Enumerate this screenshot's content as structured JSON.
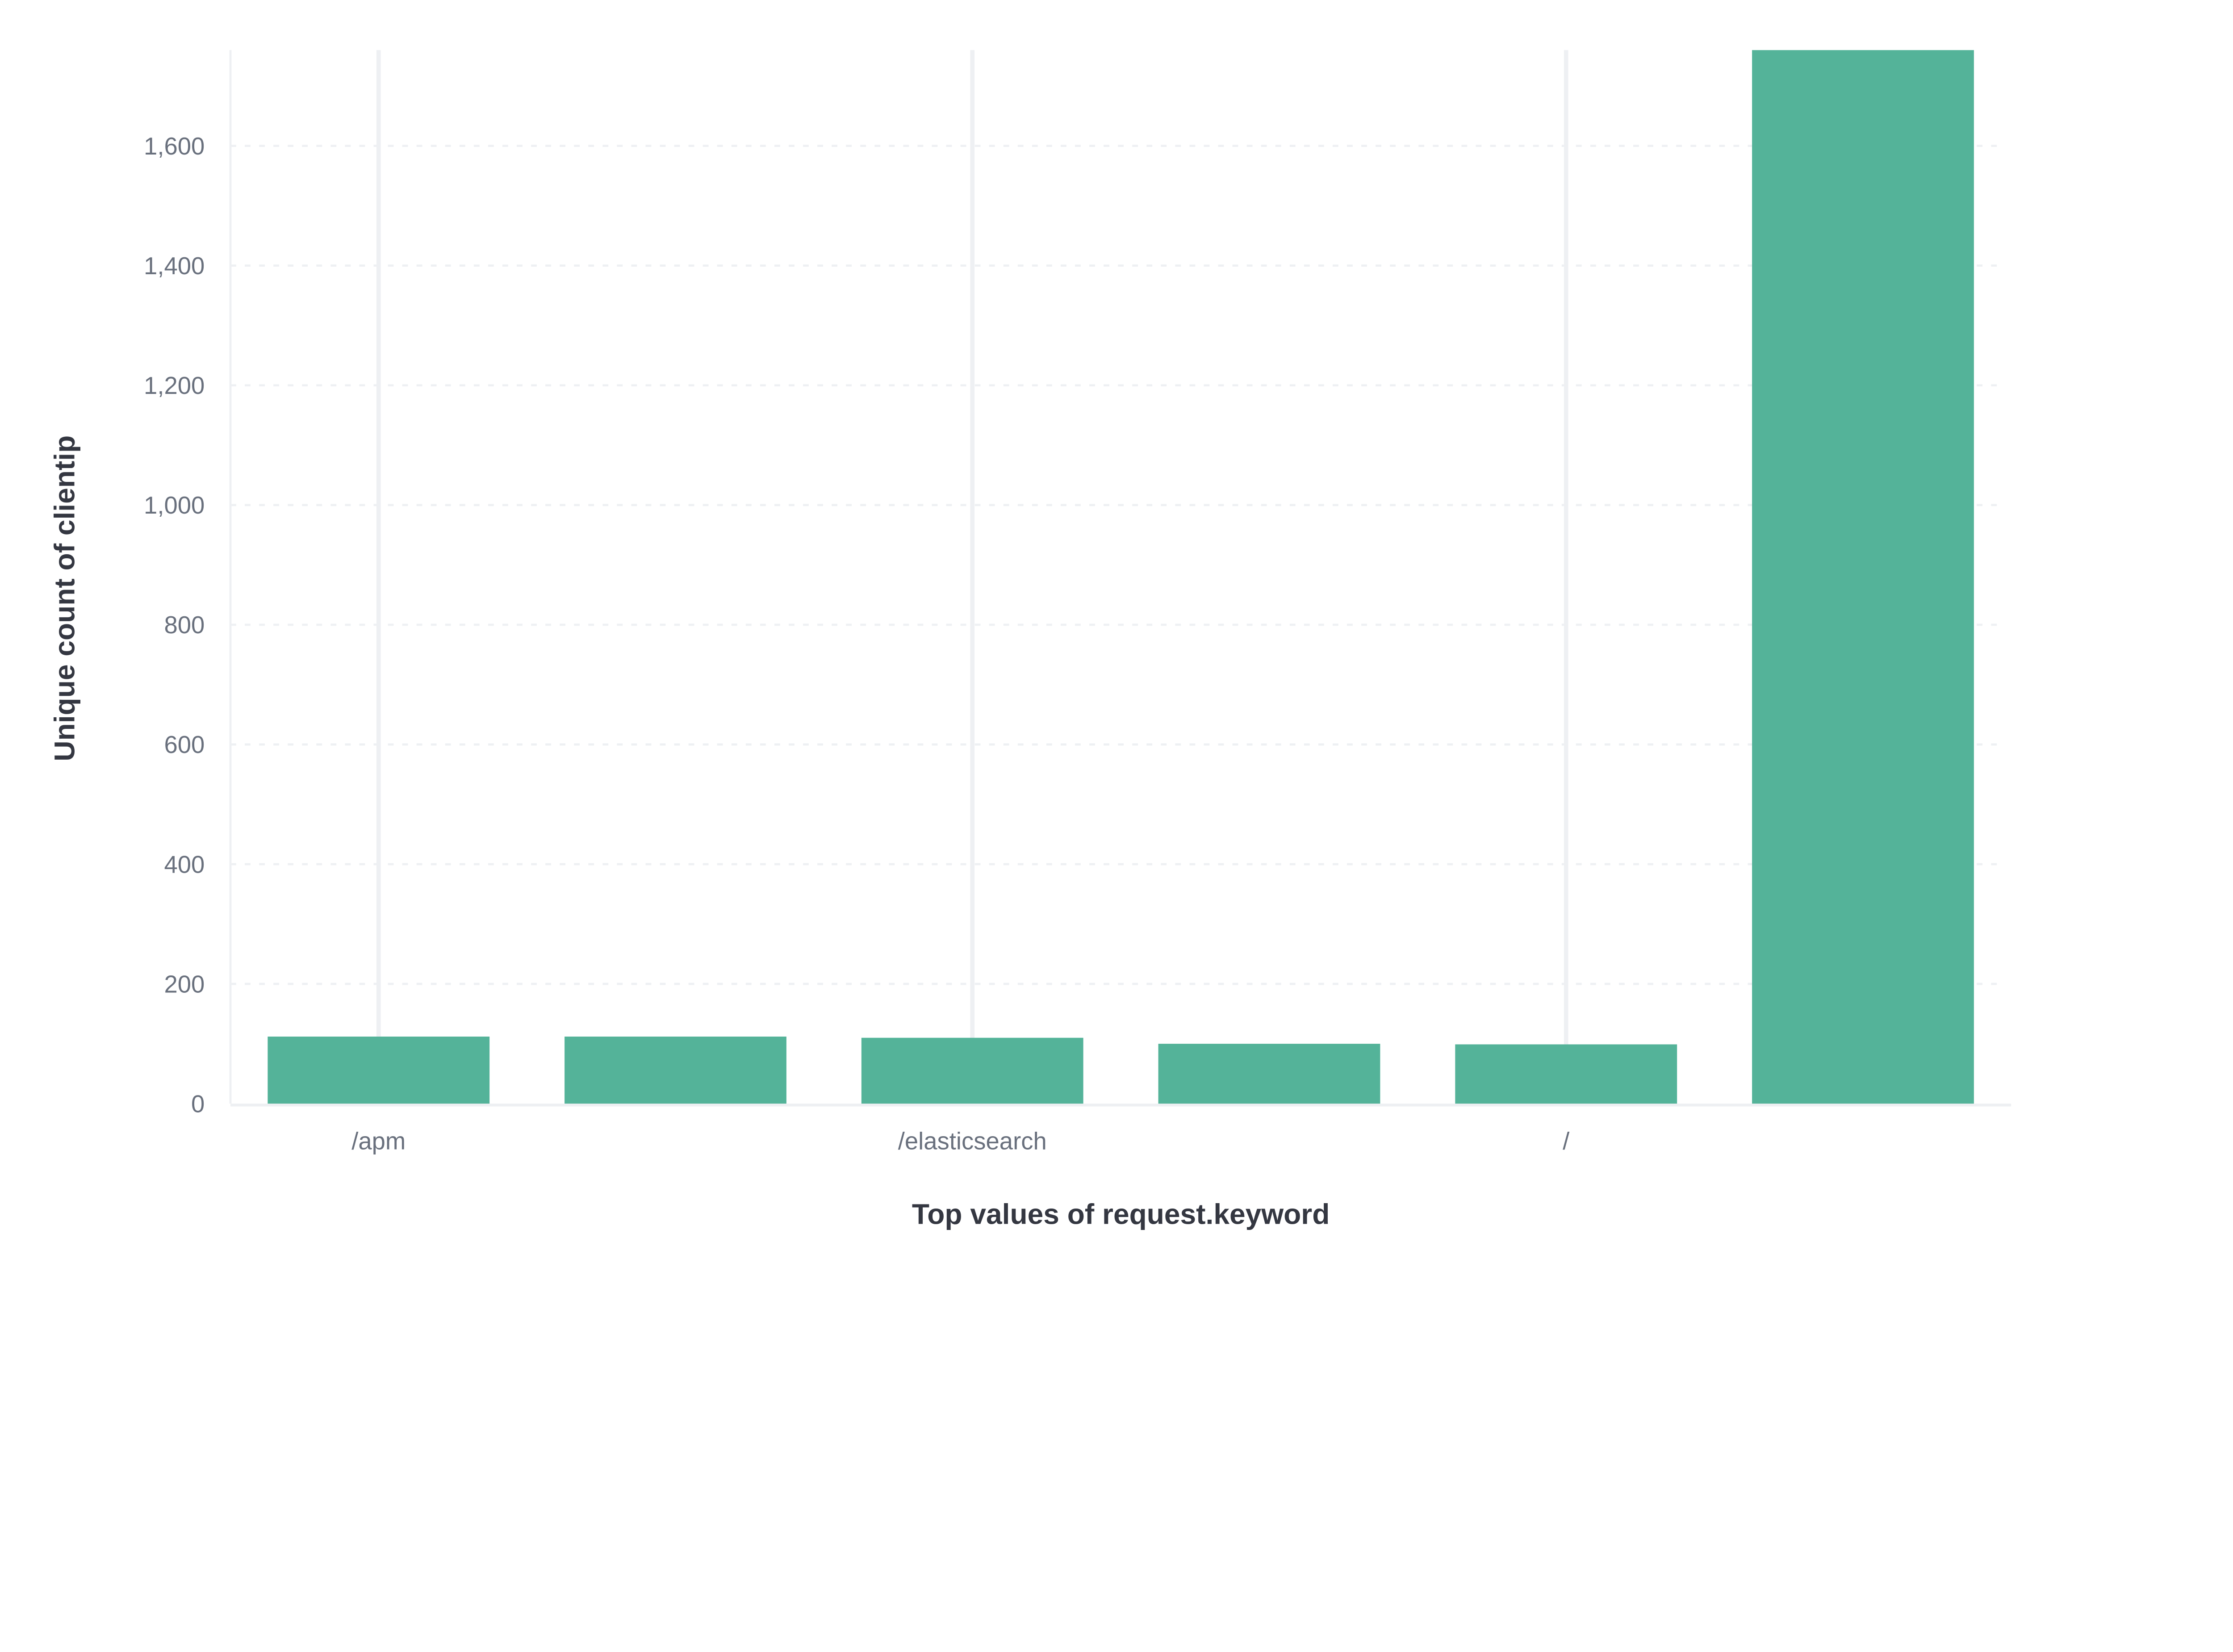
{
  "chart_data": {
    "type": "bar",
    "title": "",
    "xlabel": "Top values of request.keyword",
    "ylabel": "Unique count of clientip",
    "categories": [
      "/apm",
      "",
      "/elasticsearch",
      "",
      "/",
      ""
    ],
    "values": [
      112,
      112,
      110,
      100,
      99,
      1760
    ],
    "ylim": [
      0,
      1760
    ],
    "yticks": [
      0,
      200,
      400,
      600,
      800,
      1000,
      1200,
      1400,
      1600
    ],
    "ytick_labels": [
      "0",
      "200",
      "400",
      "600",
      "800",
      "1,000",
      "1,200",
      "1,400",
      "1,600"
    ],
    "grid": true,
    "legend": "none",
    "colors": {
      "bar": "#54b399",
      "grid": "#eef0f3",
      "axis": "#eef0f3"
    }
  }
}
